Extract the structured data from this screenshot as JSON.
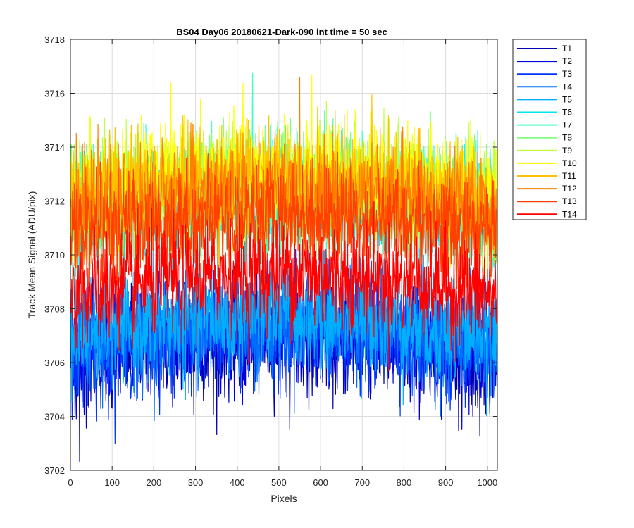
{
  "chart_data": {
    "type": "line",
    "title": "BS04 Day06 20180621-Dark-090 int time = 50 sec",
    "xlabel": "Pixels",
    "ylabel": "Track Mean Signal (ADU/pix)",
    "xlim": [
      0,
      1024
    ],
    "ylim": [
      3702,
      3718
    ],
    "xticks": [
      0,
      100,
      200,
      300,
      400,
      500,
      600,
      700,
      800,
      900,
      1000
    ],
    "yticks": [
      3702,
      3704,
      3706,
      3708,
      3710,
      3712,
      3714,
      3716,
      3718
    ],
    "grid": true,
    "legend_position": "outside-top-right",
    "n_points": 1024,
    "series": [
      {
        "name": "T1",
        "color": "#0000B0",
        "mean": 3706.6,
        "spread": 1.0
      },
      {
        "name": "T2",
        "color": "#0000DD",
        "mean": 3706.8,
        "spread": 1.0
      },
      {
        "name": "T3",
        "color": "#0033FF",
        "mean": 3707.0,
        "spread": 1.0
      },
      {
        "name": "T4",
        "color": "#0070FF",
        "mean": 3707.2,
        "spread": 1.0
      },
      {
        "name": "T5",
        "color": "#00B0FF",
        "mean": 3707.5,
        "spread": 1.0
      },
      {
        "name": "T6",
        "color": "#00E5EE",
        "mean": 3711.8,
        "spread": 1.0
      },
      {
        "name": "T7",
        "color": "#40FFBF",
        "mean": 3712.2,
        "spread": 1.0
      },
      {
        "name": "T8",
        "color": "#80FF80",
        "mean": 3712.4,
        "spread": 1.0
      },
      {
        "name": "T9",
        "color": "#BFFF40",
        "mean": 3712.6,
        "spread": 1.0
      },
      {
        "name": "T10",
        "color": "#FFFF00",
        "mean": 3712.8,
        "spread": 1.0
      },
      {
        "name": "T11",
        "color": "#FFC000",
        "mean": 3712.5,
        "spread": 1.0
      },
      {
        "name": "T12",
        "color": "#FF8000",
        "mean": 3712.0,
        "spread": 1.0
      },
      {
        "name": "T13",
        "color": "#FF4000",
        "mean": 3711.2,
        "spread": 1.0
      },
      {
        "name": "T14",
        "color": "#FF0000",
        "mean": 3709.0,
        "spread": 1.0
      }
    ]
  }
}
